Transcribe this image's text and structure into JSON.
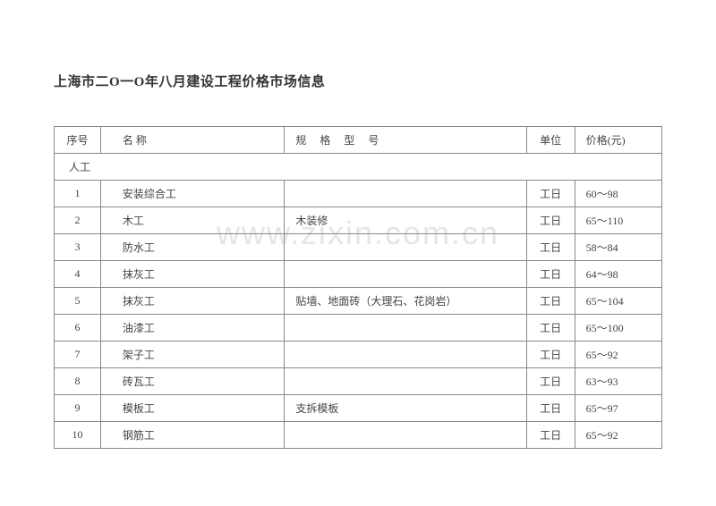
{
  "title": "上海市二O一O年八月建设工程价格市场信息",
  "watermark": "www.zixin.com.cn",
  "table": {
    "headers": {
      "seq": "序号",
      "name": "名 称",
      "spec": "规 格 型 号",
      "unit": "单位",
      "price": "价格(元)"
    },
    "category": "人工",
    "rows": [
      {
        "seq": "1",
        "name": "安装综合工",
        "spec": "",
        "unit": "工日",
        "price": "60～98"
      },
      {
        "seq": "2",
        "name": "木工",
        "spec": "木装修",
        "unit": "工日",
        "price": "65～110"
      },
      {
        "seq": "3",
        "name": "防水工",
        "spec": "",
        "unit": "工日",
        "price": "58～84"
      },
      {
        "seq": "4",
        "name": "抹灰工",
        "spec": "",
        "unit": "工日",
        "price": "64～98"
      },
      {
        "seq": "5",
        "name": "抹灰工",
        "spec": "贴墙、地面砖（大理石、花岗岩）",
        "unit": "工日",
        "price": "65～104"
      },
      {
        "seq": "6",
        "name": "油漆工",
        "spec": "",
        "unit": "工日",
        "price": "65～100"
      },
      {
        "seq": "7",
        "name": "架子工",
        "spec": "",
        "unit": "工日",
        "price": "65～92"
      },
      {
        "seq": "8",
        "name": "砖瓦工",
        "spec": "",
        "unit": "工日",
        "price": "63～93"
      },
      {
        "seq": "9",
        "name": "模板工",
        "spec": "支拆模板",
        "unit": "工日",
        "price": "65～97"
      },
      {
        "seq": "10",
        "name": "钢筋工",
        "spec": "",
        "unit": "工日",
        "price": "65～92"
      }
    ]
  },
  "styling": {
    "title_fontsize": 15,
    "table_fontsize": 12,
    "border_color": "#888888",
    "text_color": "#444444",
    "background": "#ffffff",
    "watermark_color": "rgba(150,150,150,0.25)",
    "watermark_fontsize": 36
  }
}
